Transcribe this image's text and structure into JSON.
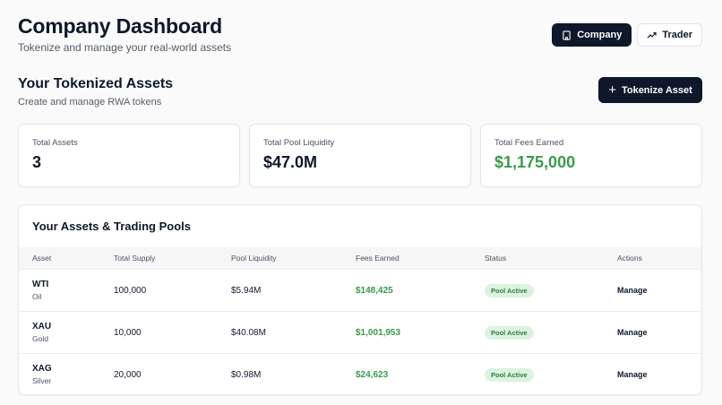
{
  "header": {
    "title": "Company Dashboard",
    "subtitle": "Tokenize and manage your real-world assets"
  },
  "view_switch": {
    "company_label": "Company",
    "trader_label": "Trader",
    "company_icon": "building-icon",
    "trader_icon": "trending-up-icon"
  },
  "section": {
    "title": "Your Tokenized Assets",
    "subtitle": "Create and manage RWA tokens",
    "tokenize_label": "Tokenize Asset"
  },
  "stats": [
    {
      "label": "Total Assets",
      "value": "3"
    },
    {
      "label": "Total Pool Liquidity",
      "value": "$47.0M"
    },
    {
      "label": "Total Fees Earned",
      "value": "$1,175,000"
    }
  ],
  "table": {
    "title": "Your Assets & Trading Pools",
    "columns": [
      "Asset",
      "Total Supply",
      "Pool Liquidity",
      "Fees Earned",
      "Status",
      "Actions"
    ],
    "rows": [
      {
        "symbol": "WTI",
        "name": "Oil",
        "supply": "100,000",
        "liquidity": "$5.94M",
        "fees": "$148,425",
        "status": "Pool Active",
        "action": "Manage"
      },
      {
        "symbol": "XAU",
        "name": "Gold",
        "supply": "10,000",
        "liquidity": "$40.08M",
        "fees": "$1,001,953",
        "status": "Pool Active",
        "action": "Manage"
      },
      {
        "symbol": "XAG",
        "name": "Silver",
        "supply": "20,000",
        "liquidity": "$0.98M",
        "fees": "$24,623",
        "status": "Pool Active",
        "action": "Manage"
      }
    ]
  },
  "colors": {
    "primary": "#0f172a",
    "positive": "#3a9a4a",
    "badge_bg": "#dcf3e1"
  }
}
